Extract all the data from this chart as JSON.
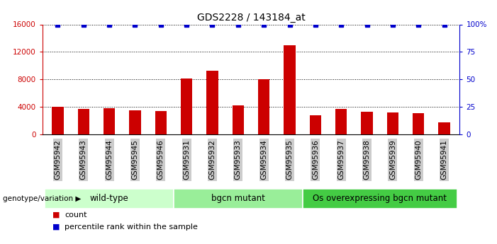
{
  "title": "GDS2228 / 143184_at",
  "samples": [
    "GSM95942",
    "GSM95943",
    "GSM95944",
    "GSM95945",
    "GSM95946",
    "GSM95931",
    "GSM95932",
    "GSM95933",
    "GSM95934",
    "GSM95935",
    "GSM95936",
    "GSM95937",
    "GSM95938",
    "GSM95939",
    "GSM95940",
    "GSM95941"
  ],
  "counts": [
    4000,
    3700,
    3800,
    3500,
    3400,
    8100,
    9200,
    4200,
    8000,
    13000,
    2800,
    3700,
    3300,
    3200,
    3100,
    1700
  ],
  "percentile_ranks": [
    100,
    100,
    100,
    100,
    100,
    100,
    100,
    100,
    100,
    100,
    100,
    100,
    100,
    100,
    100,
    100
  ],
  "bar_color": "#cc0000",
  "percentile_color": "#0000cc",
  "ylim_left": [
    0,
    16000
  ],
  "ylim_right": [
    0,
    100
  ],
  "yticks_left": [
    0,
    4000,
    8000,
    12000,
    16000
  ],
  "yticks_right": [
    0,
    25,
    50,
    75,
    100
  ],
  "yticklabels_right": [
    "0",
    "25",
    "50",
    "75",
    "100%"
  ],
  "groups": [
    {
      "label": "wild-type",
      "start": 0,
      "end": 5,
      "color": "#ccffcc"
    },
    {
      "label": "bgcn mutant",
      "start": 5,
      "end": 10,
      "color": "#99ee99"
    },
    {
      "label": "Os overexpressing bgcn mutant",
      "start": 10,
      "end": 16,
      "color": "#44cc44"
    }
  ],
  "group_row_label": "genotype/variation",
  "legend_count_label": "count",
  "legend_percentile_label": "percentile rank within the sample",
  "tick_bg_color": "#cccccc",
  "title_fontsize": 10,
  "tick_fontsize": 7.5,
  "group_fontsize": 8.5
}
